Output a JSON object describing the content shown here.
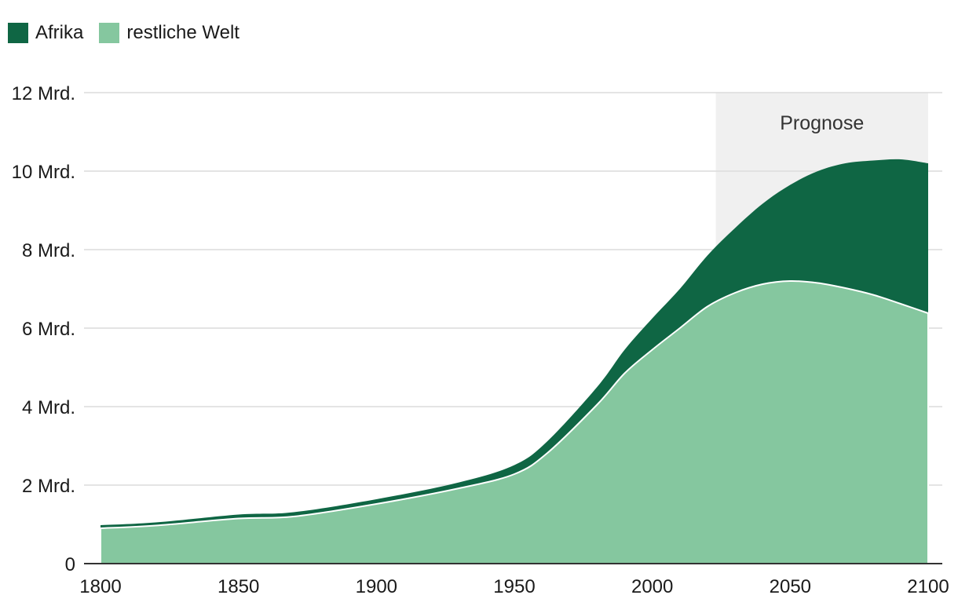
{
  "chart_data": {
    "type": "area",
    "stacked": true,
    "legend_placement": "top-left",
    "grid": true,
    "xlim": [
      1800,
      2100
    ],
    "ylim": [
      0,
      12
    ],
    "x_ticks": [
      {
        "value": 1800,
        "label": "1800"
      },
      {
        "value": 1850,
        "label": "1850"
      },
      {
        "value": 1900,
        "label": "1900"
      },
      {
        "value": 1950,
        "label": "1950"
      },
      {
        "value": 2000,
        "label": "2000"
      },
      {
        "value": 2050,
        "label": "2050"
      },
      {
        "value": 2100,
        "label": "2100"
      }
    ],
    "y_ticks": [
      {
        "value": 0,
        "label": "0"
      },
      {
        "value": 2,
        "label": "2 Mrd."
      },
      {
        "value": 4,
        "label": "4 Mrd."
      },
      {
        "value": 6,
        "label": "6 Mrd."
      },
      {
        "value": 8,
        "label": "8 Mrd."
      },
      {
        "value": 10,
        "label": "10 Mrd."
      },
      {
        "value": 12,
        "label": "12 Mrd."
      }
    ],
    "x": [
      1800,
      1820,
      1850,
      1870,
      1900,
      1930,
      1950,
      1962,
      1980,
      1990,
      2000,
      2010,
      2020,
      2030,
      2040,
      2050,
      2060,
      2070,
      2080,
      2090,
      2100
    ],
    "series": [
      {
        "name": "restliche Welt",
        "color": "#85c79f",
        "values": [
          0.9,
          0.97,
          1.15,
          1.2,
          1.52,
          1.92,
          2.28,
          2.82,
          4.05,
          4.85,
          5.45,
          6.0,
          6.55,
          6.9,
          7.12,
          7.2,
          7.15,
          7.02,
          6.85,
          6.62,
          6.38
        ]
      },
      {
        "name": "Afrika",
        "color": "#0f6644",
        "values": [
          0.08,
          0.08,
          0.1,
          0.11,
          0.12,
          0.15,
          0.23,
          0.3,
          0.45,
          0.6,
          0.8,
          1.0,
          1.3,
          1.65,
          2.05,
          2.45,
          2.85,
          3.18,
          3.42,
          3.68,
          3.82
        ]
      }
    ],
    "annotation": {
      "label": "Prognose",
      "x_start": 2023,
      "x_end": 2100,
      "shade_color": "#f0f0f0"
    },
    "gridline_color": "#dcdcdc",
    "axis_color": "#333333"
  }
}
